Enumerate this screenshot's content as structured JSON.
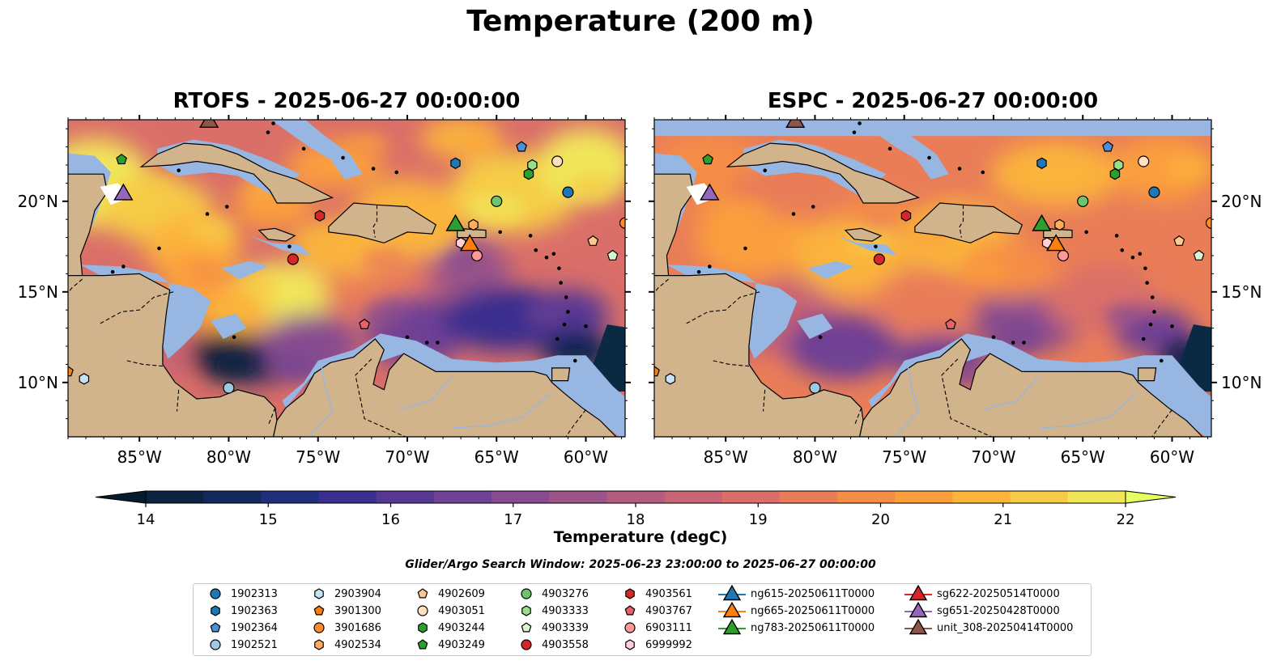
{
  "title": "Temperature (200 m)",
  "panels": [
    {
      "title": "RTOFS - 2025-06-27 00:00:00",
      "model": "RTOFS"
    },
    {
      "title": "ESPC - 2025-06-27 00:00:00",
      "model": "ESPC"
    }
  ],
  "map": {
    "lon_range": [
      -89,
      -57.8
    ],
    "lat_range": [
      7,
      24.5
    ],
    "lon_ticks": [
      "85°W",
      "80°W",
      "75°W",
      "70°W",
      "65°W",
      "60°W"
    ],
    "lon_tick_values": [
      -85,
      -80,
      -75,
      -70,
      -65,
      -60
    ],
    "lat_ticks": [
      "10°N",
      "15°N",
      "20°N"
    ],
    "lat_tick_values": [
      10,
      15,
      20
    ],
    "colors": {
      "land": "#d2b48c",
      "shallow": "#97b6e1",
      "border": "#000000",
      "river": "#97b6e1"
    }
  },
  "colorbar": {
    "label": "Temperature (degC)",
    "min": 14,
    "max": 22,
    "ticks": [
      "14",
      "15",
      "16",
      "17",
      "18",
      "19",
      "20",
      "21",
      "22"
    ],
    "colors": [
      "#0b2240",
      "#10285b",
      "#1f2f7c",
      "#3a2f8e",
      "#563794",
      "#704194",
      "#874c8f",
      "#9c5488",
      "#b25c7f",
      "#c76475",
      "#da6f69",
      "#e97d58",
      "#f58d47",
      "#fb9f3c",
      "#fbb43c",
      "#f6cc47",
      "#f1e65a"
    ],
    "extend_low": "#051b2e",
    "extend_high": "#e8ff61"
  },
  "search_window": "Glider/Argo Search Window: 2025-06-23 23:00:00 to 2025-06-27 00:00:00",
  "legend": {
    "argo": [
      {
        "label": "1902313",
        "color": "#1f77b4",
        "shape": "circle"
      },
      {
        "label": "1902363",
        "color": "#1f77b4",
        "shape": "hexagon"
      },
      {
        "label": "1902364",
        "color": "#4a90d9",
        "shape": "pentagon"
      },
      {
        "label": "1902521",
        "color": "#9ecae1",
        "shape": "circle"
      },
      {
        "label": "2903904",
        "color": "#c6e2f5",
        "shape": "hexagon"
      },
      {
        "label": "3901300",
        "color": "#ff7f0e",
        "shape": "pentagon"
      },
      {
        "label": "3901686",
        "color": "#ff8c2a",
        "shape": "circle"
      },
      {
        "label": "4902534",
        "color": "#ffad5c",
        "shape": "hexagon"
      },
      {
        "label": "4902609",
        "color": "#ffc78f",
        "shape": "pentagon"
      },
      {
        "label": "4903051",
        "color": "#ffe0c0",
        "shape": "circle"
      },
      {
        "label": "4903244",
        "color": "#2ca02c",
        "shape": "hexagon"
      },
      {
        "label": "4903249",
        "color": "#2ca02c",
        "shape": "pentagon"
      },
      {
        "label": "4903276",
        "color": "#6cc46c",
        "shape": "circle"
      },
      {
        "label": "4903333",
        "color": "#98df8a",
        "shape": "hexagon"
      },
      {
        "label": "4903339",
        "color": "#d8f5cf",
        "shape": "pentagon"
      },
      {
        "label": "4903558",
        "color": "#d62728",
        "shape": "circle"
      },
      {
        "label": "4903561",
        "color": "#d62728",
        "shape": "hexagon"
      },
      {
        "label": "4903767",
        "color": "#e8606a",
        "shape": "pentagon"
      },
      {
        "label": "6903111",
        "color": "#ff9896",
        "shape": "circle"
      },
      {
        "label": "6999992",
        "color": "#ffd0d8",
        "shape": "hexagon"
      }
    ],
    "gliders": [
      {
        "label": "ng615-20250611T0000",
        "color": "#1f77b4"
      },
      {
        "label": "ng665-20250611T0000",
        "color": "#ff7f0e"
      },
      {
        "label": "ng783-20250611T0000",
        "color": "#2ca02c"
      },
      {
        "label": "sg622-20250514T0000",
        "color": "#d62728"
      },
      {
        "label": "sg651-20250428T0000",
        "color": "#9467bd"
      },
      {
        "label": "unit_308-20250414T0000",
        "color": "#8c564b"
      }
    ]
  },
  "observations": {
    "argo": [
      {
        "id": "1902313",
        "lon": -61.0,
        "lat": 20.5
      },
      {
        "id": "1902363",
        "lon": -67.3,
        "lat": 22.1
      },
      {
        "id": "1902364",
        "lon": -63.6,
        "lat": 23.0
      },
      {
        "id": "1902521",
        "lon": -80.0,
        "lat": 9.7
      },
      {
        "id": "2903904",
        "lon": -88.1,
        "lat": 10.2
      },
      {
        "id": "3901300",
        "lon": -89.0,
        "lat": 10.6
      },
      {
        "id": "3901686",
        "lon": -57.8,
        "lat": 18.8
      },
      {
        "id": "4902534",
        "lon": -66.3,
        "lat": 18.7
      },
      {
        "id": "4902609",
        "lon": -59.6,
        "lat": 17.8
      },
      {
        "id": "4903051",
        "lon": -61.6,
        "lat": 22.2
      },
      {
        "id": "4903244",
        "lon": -63.2,
        "lat": 21.5
      },
      {
        "id": "4903249",
        "lon": -86.0,
        "lat": 22.3
      },
      {
        "id": "4903276",
        "lon": -65.0,
        "lat": 20.0
      },
      {
        "id": "4903333",
        "lon": -63.0,
        "lat": 22.0
      },
      {
        "id": "4903339",
        "lon": -58.5,
        "lat": 17.0
      },
      {
        "id": "4903558",
        "lon": -76.4,
        "lat": 16.8
      },
      {
        "id": "4903561",
        "lon": -74.9,
        "lat": 19.2
      },
      {
        "id": "4903767",
        "lon": -72.4,
        "lat": 13.2
      },
      {
        "id": "6903111",
        "lon": -66.1,
        "lat": 17.0
      },
      {
        "id": "6999992",
        "lon": -67.0,
        "lat": 17.7
      }
    ],
    "gliders": [
      {
        "id": "ng665-20250611T0000",
        "lon": -66.5,
        "lat": 17.7
      },
      {
        "id": "ng783-20250611T0000",
        "lon": -67.3,
        "lat": 18.8
      },
      {
        "id": "sg651-20250428T0000",
        "lon": -85.9,
        "lat": 20.5
      },
      {
        "id": "unit_308-20250414T0000",
        "lon": -81.1,
        "lat": 24.5
      }
    ]
  }
}
